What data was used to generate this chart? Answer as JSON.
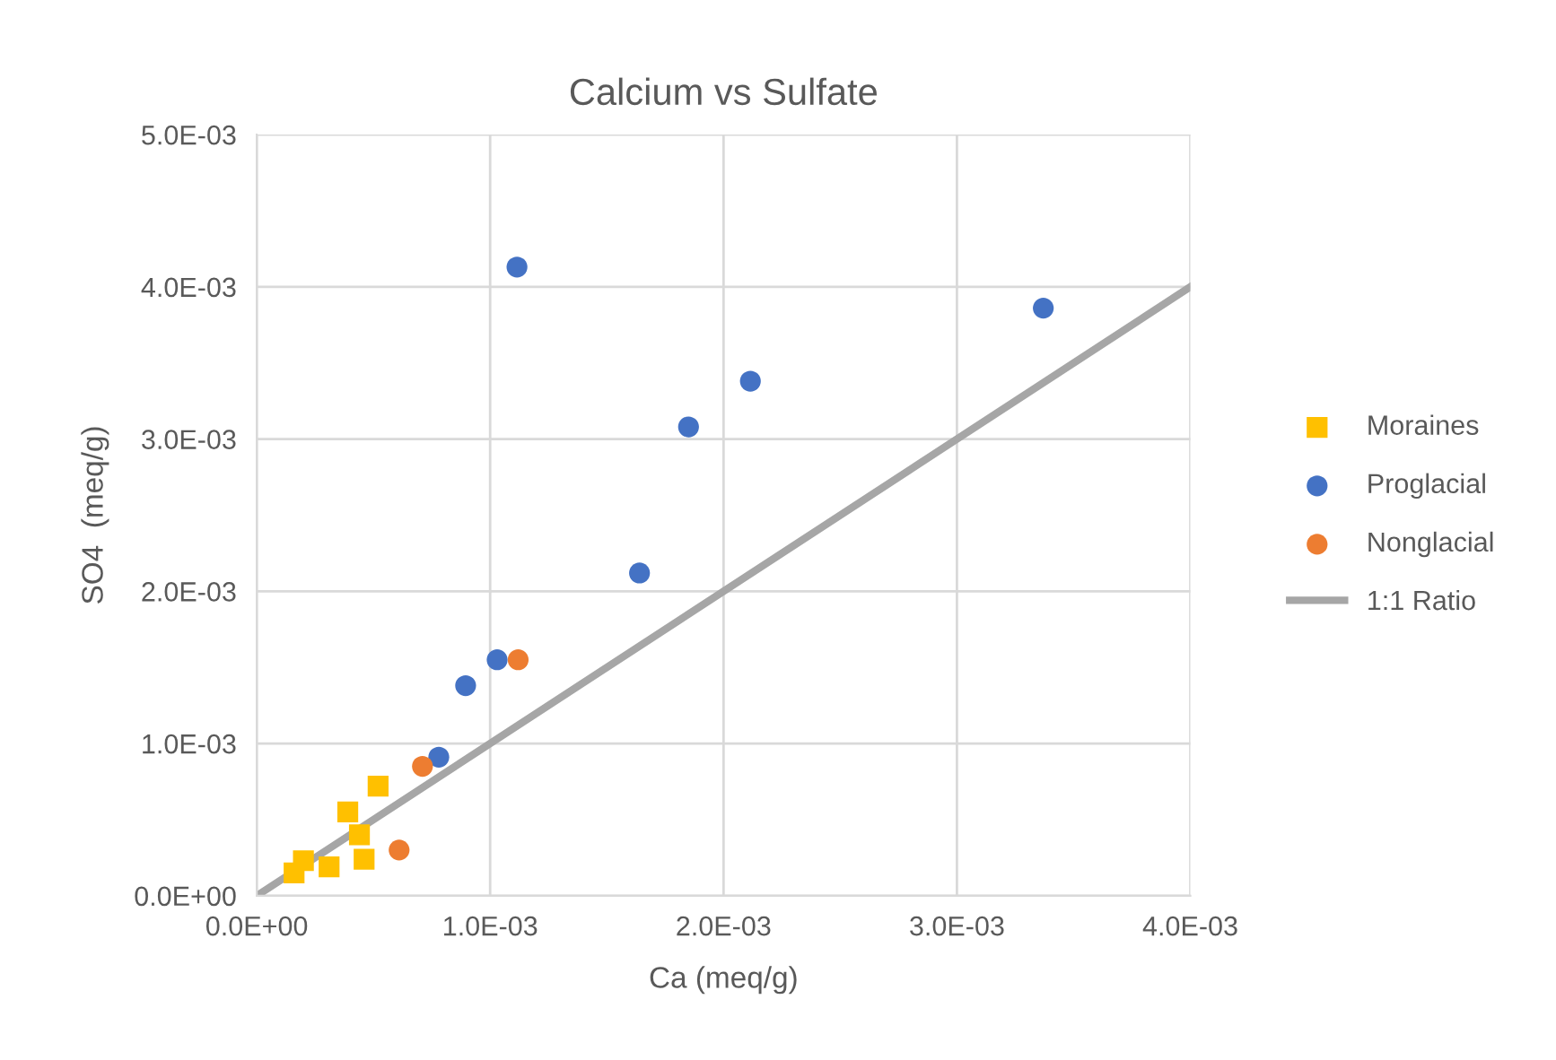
{
  "chart_data": {
    "type": "scatter",
    "title": "Calcium vs Sulfate",
    "xlabel": "Ca (meq/g)",
    "ylabel": "SO4  (meq/g)",
    "xlim": [
      0,
      0.004
    ],
    "ylim": [
      0,
      0.005
    ],
    "xticks": [
      {
        "value": 0,
        "label": "0.0E+00"
      },
      {
        "value": 0.001,
        "label": "1.0E-03"
      },
      {
        "value": 0.002,
        "label": "2.0E-03"
      },
      {
        "value": 0.003,
        "label": "3.0E-03"
      },
      {
        "value": 0.004,
        "label": "4.0E-03"
      }
    ],
    "yticks": [
      {
        "value": 0,
        "label": "0.0E+00"
      },
      {
        "value": 0.001,
        "label": "1.0E-03"
      },
      {
        "value": 0.002,
        "label": "2.0E-03"
      },
      {
        "value": 0.003,
        "label": "3.0E-03"
      },
      {
        "value": 0.004,
        "label": "4.0E-03"
      },
      {
        "value": 0.005,
        "label": "5.0E-03"
      }
    ],
    "grid": true,
    "legend": "right",
    "series": [
      {
        "name": "Moraines",
        "color": "#ffc000",
        "marker": "square",
        "x": [
          0.00052,
          0.00039,
          0.00044,
          0.0002,
          0.00016,
          0.00031,
          0.00046
        ],
        "values": [
          0.00072,
          0.00055,
          0.0004,
          0.00023,
          0.00015,
          0.00019,
          0.00024
        ]
      },
      {
        "name": "Proglacial",
        "color": "#4472c4",
        "marker": "circle",
        "x": [
          0.00078,
          0.000895,
          0.00103,
          0.001115,
          0.00164,
          0.00185,
          0.002115,
          0.00337
        ],
        "values": [
          0.00091,
          0.00138,
          0.00155,
          0.00413,
          0.00212,
          0.00308,
          0.00338,
          0.00386
        ]
      },
      {
        "name": "Nonglacial",
        "color": "#ed7d31",
        "marker": "circle",
        "x": [
          0.00061,
          0.00071,
          0.00112
        ],
        "values": [
          0.0003,
          0.00085,
          0.00155
        ]
      },
      {
        "name": "1:1 Ratio",
        "type": "line",
        "color": "#a6a6a6",
        "marker": "none",
        "line_style": "solid",
        "x": [
          0,
          0.004
        ],
        "values": [
          0,
          0.004
        ]
      }
    ]
  }
}
